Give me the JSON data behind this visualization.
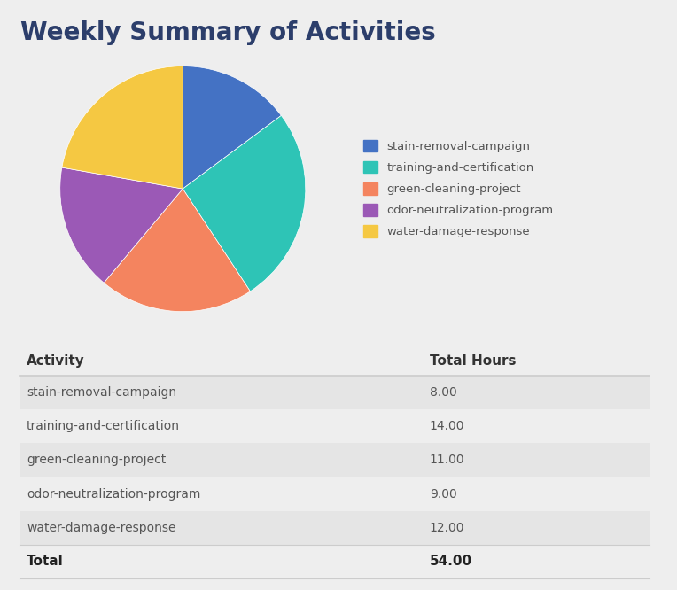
{
  "title": "Weekly Summary of Activities",
  "activities": [
    "stain-removal-campaign",
    "training-and-certification",
    "green-cleaning-project",
    "odor-neutralization-program",
    "water-damage-response"
  ],
  "hours": [
    8.0,
    14.0,
    11.0,
    9.0,
    12.0
  ],
  "total": 54.0,
  "pie_colors": [
    "#4472c4",
    "#2ec4b6",
    "#f4845f",
    "#9b59b6",
    "#f5c842"
  ],
  "bg_color": "#eeeeee",
  "table_alt_bg": "#e5e5e5",
  "title_color": "#2c3e6b",
  "header_color": "#333333",
  "row_color": "#555555",
  "total_color": "#222222",
  "line_color": "#cccccc",
  "title_fontsize": 20,
  "table_header_fontsize": 11,
  "table_row_fontsize": 10
}
